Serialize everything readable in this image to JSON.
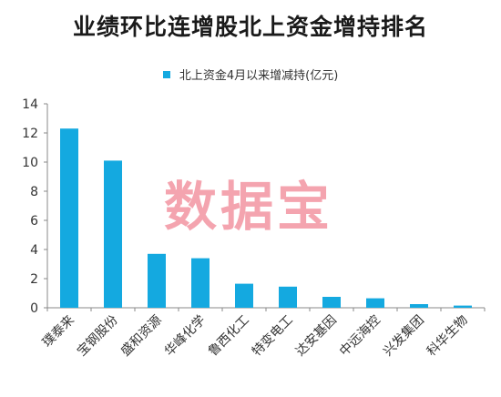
{
  "chart_data": {
    "type": "bar",
    "title": "业绩环比连增股北上资金增持排名",
    "legend": {
      "position": "top",
      "entries": [
        "北上资金4月以来增减持(亿元)"
      ]
    },
    "categories": [
      "璞泰来",
      "宝钢股份",
      "盛和资源",
      "华峰化学",
      "鲁西化工",
      "特变电工",
      "达安基因",
      "中远海控",
      "兴发集团",
      "科华生物"
    ],
    "series": [
      {
        "name": "北上资金4月以来增减持(亿元)",
        "values": [
          12.3,
          10.1,
          3.7,
          3.4,
          1.65,
          1.45,
          0.75,
          0.65,
          0.25,
          0.15
        ]
      }
    ],
    "ylim": [
      0,
      14
    ],
    "yticks": [
      0,
      2,
      4,
      6,
      8,
      10,
      12,
      14
    ],
    "grid": false,
    "bar_color": "#14a9e0"
  },
  "watermark": "数据宝"
}
